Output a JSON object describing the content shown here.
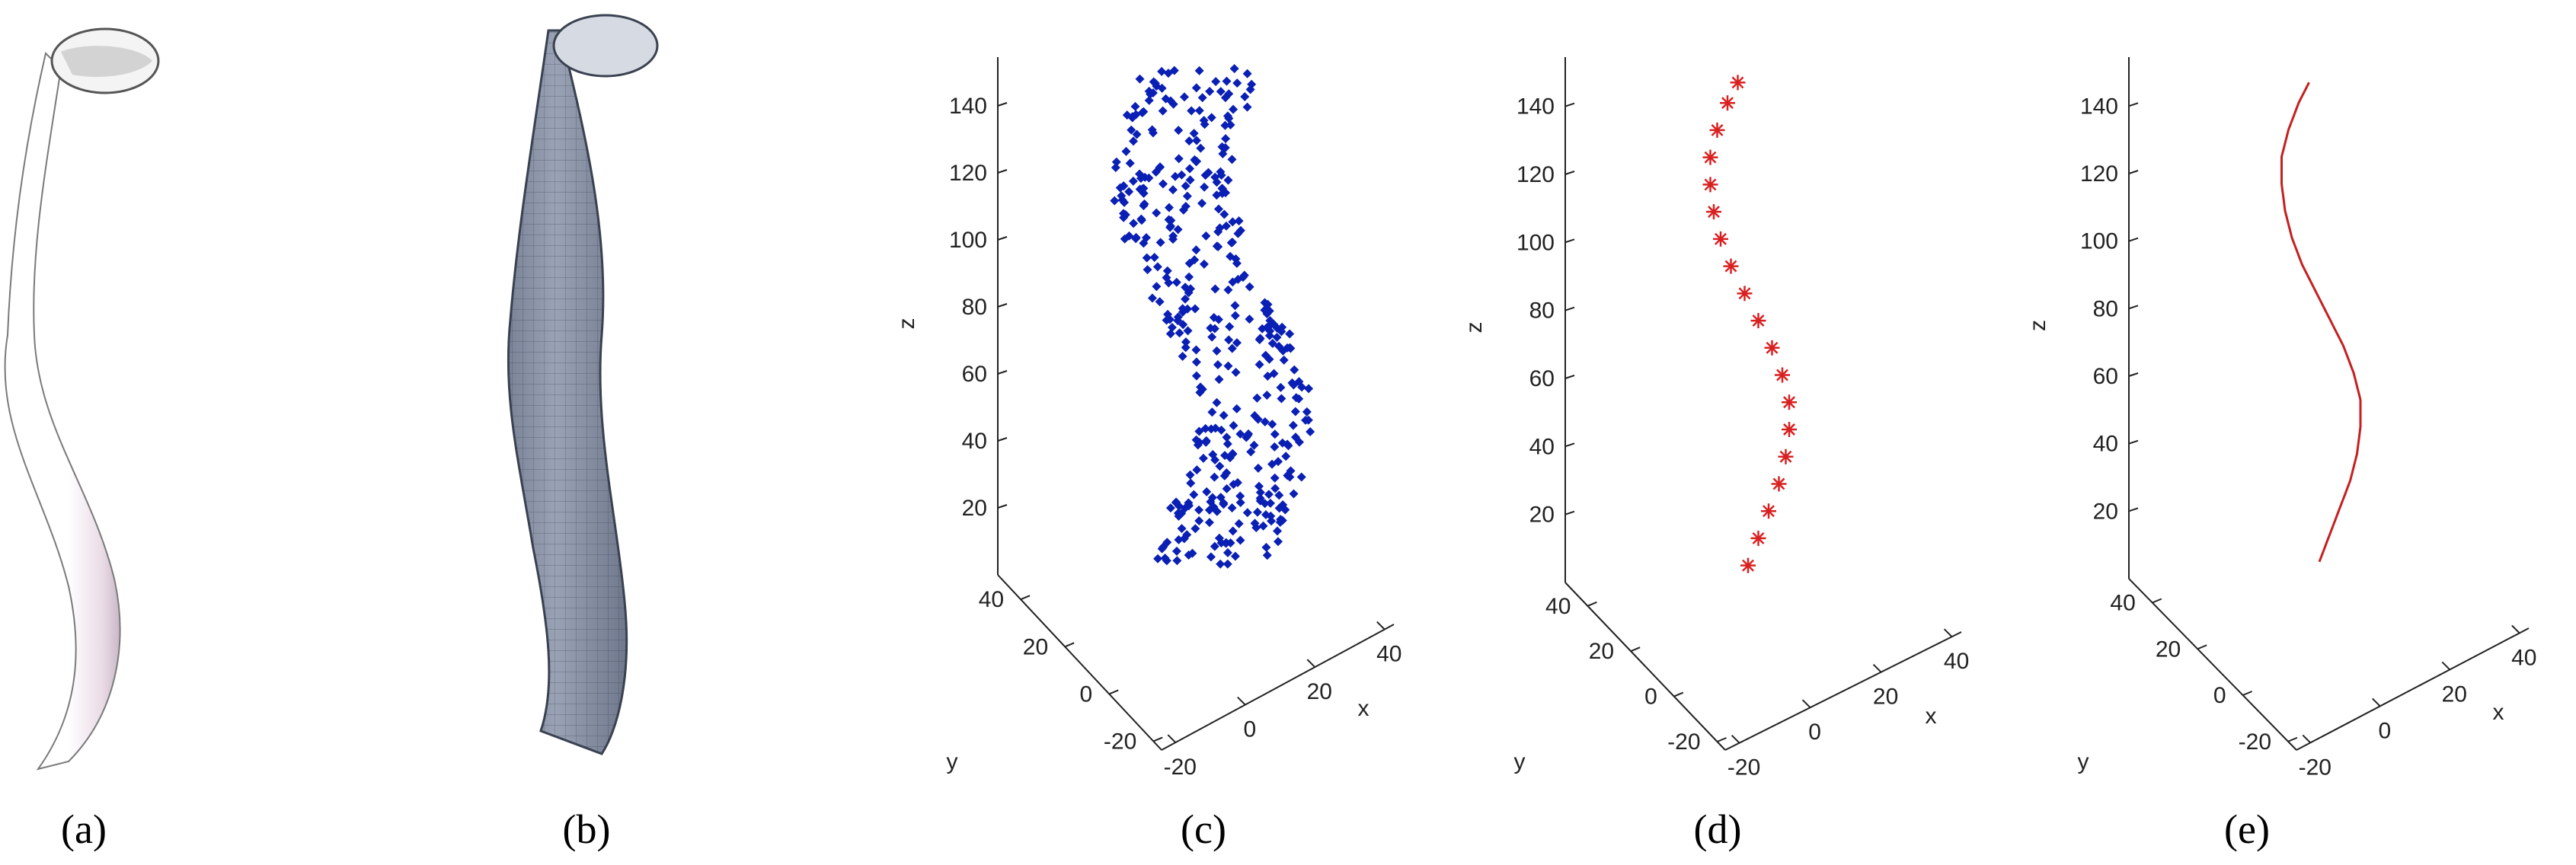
{
  "panels": [
    {
      "id": "a",
      "caption": "(a)",
      "kind": "render-smooth",
      "colors": {
        "surface": "#ffffff",
        "shade": "#d9c8d6",
        "rim": "#555555"
      }
    },
    {
      "id": "b",
      "caption": "(b)",
      "kind": "render-mesh",
      "colors": {
        "surface": "#8c95a8",
        "mesh": "#2f3542"
      }
    },
    {
      "id": "c",
      "caption": "(c)",
      "kind": "point-cloud",
      "colors": {
        "marker": "#0a1fb4"
      }
    },
    {
      "id": "d",
      "caption": "(d)",
      "kind": "centerline-points",
      "colors": {
        "marker": "#d92020"
      }
    },
    {
      "id": "e",
      "caption": "(e)",
      "kind": "centerline-curve",
      "colors": {
        "line": "#c42020"
      }
    }
  ],
  "axes3d": {
    "z_label": "z",
    "x_label": "x",
    "y_label": "y",
    "z_ticks": [
      "20",
      "40",
      "60",
      "80",
      "100",
      "120",
      "140"
    ],
    "x_ticks": [
      "-20",
      "0",
      "20",
      "40"
    ],
    "y_ticks": [
      "40",
      "20",
      "0",
      "-20"
    ]
  },
  "chart_data": {
    "type": "scatter",
    "dimensions": 3,
    "xlabel": "x",
    "ylabel": "y",
    "zlabel": "z",
    "xlim": [
      -20,
      40
    ],
    "ylim": [
      -20,
      40
    ],
    "zlim": [
      0,
      150
    ],
    "tube_radius": 14,
    "centerline": {
      "z": [
        5,
        13,
        21,
        29,
        37,
        45,
        53,
        61,
        69,
        77,
        85,
        93,
        101,
        109,
        117,
        125,
        133,
        141,
        147
      ],
      "x_offset_from_mean": [
        0,
        1.5,
        3,
        4.5,
        5.5,
        6,
        6,
        5,
        3.5,
        1.5,
        -0.5,
        -2.5,
        -4,
        -5,
        -5.5,
        -5.5,
        -4.5,
        -3,
        -1.5
      ]
    }
  }
}
